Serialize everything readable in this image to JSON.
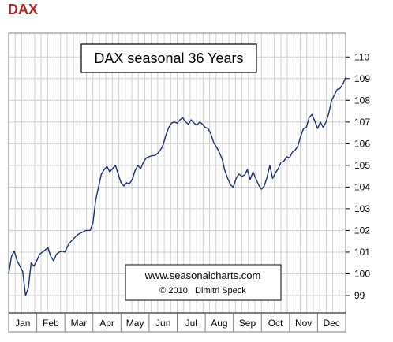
{
  "header": {
    "title": "DAX"
  },
  "chart_data": {
    "type": "line",
    "title": "DAX seasonal 36 Years",
    "xlabel": "",
    "ylabel": "",
    "categories": [
      "Jan",
      "Feb",
      "Mar",
      "Apr",
      "May",
      "Jun",
      "Jul",
      "Aug",
      "Sep",
      "Oct",
      "Nov",
      "Dec"
    ],
    "ylim": [
      98.2,
      111.1
    ],
    "xlim": [
      0,
      12
    ],
    "yticks": [
      99,
      100,
      101,
      102,
      103,
      104,
      105,
      106,
      107,
      108,
      109,
      110
    ],
    "grid": true,
    "annotation": {
      "line1": "www.seasonalcharts.com",
      "line2": "© 2010   Dimitri Speck"
    },
    "series": [
      {
        "x": [
          0.0,
          0.1,
          0.2,
          0.3,
          0.4,
          0.5,
          0.6,
          0.7,
          0.8,
          0.9,
          1.0,
          1.1,
          1.2,
          1.3,
          1.4,
          1.5,
          1.6,
          1.7,
          1.8,
          1.9,
          2.0,
          2.15,
          2.3,
          2.45,
          2.6,
          2.75,
          2.9,
          3.0,
          3.1,
          3.2,
          3.3,
          3.4,
          3.5,
          3.6,
          3.7,
          3.8,
          3.9,
          4.0,
          4.1,
          4.2,
          4.3,
          4.4,
          4.5,
          4.6,
          4.7,
          4.8,
          4.9,
          5.0,
          5.1,
          5.2,
          5.3,
          5.4,
          5.5,
          5.6,
          5.7,
          5.8,
          5.9,
          6.0,
          6.1,
          6.2,
          6.3,
          6.4,
          6.5,
          6.6,
          6.7,
          6.8,
          6.9,
          7.0,
          7.1,
          7.2,
          7.3,
          7.4,
          7.5,
          7.6,
          7.7,
          7.8,
          7.9,
          8.0,
          8.1,
          8.2,
          8.3,
          8.4,
          8.5,
          8.6,
          8.7,
          8.8,
          8.9,
          9.0,
          9.1,
          9.2,
          9.3,
          9.4,
          9.5,
          9.6,
          9.7,
          9.8,
          9.9,
          10.0,
          10.1,
          10.2,
          10.3,
          10.4,
          10.5,
          10.6,
          10.7,
          10.8,
          10.9,
          11.0,
          11.1,
          11.2,
          11.3,
          11.4,
          11.5,
          11.6,
          11.7,
          11.8,
          11.9,
          12.0
        ],
        "values": [
          100.0,
          100.8,
          101.05,
          100.6,
          100.35,
          100.1,
          99.0,
          99.35,
          100.5,
          100.35,
          100.6,
          100.9,
          101.0,
          101.1,
          101.2,
          100.8,
          100.6,
          100.9,
          101.0,
          101.05,
          101.0,
          101.4,
          101.6,
          101.8,
          101.9,
          102.0,
          102.0,
          102.35,
          103.4,
          104.0,
          104.6,
          104.8,
          104.95,
          104.7,
          104.85,
          105.0,
          104.6,
          104.2,
          104.05,
          104.2,
          104.15,
          104.35,
          104.75,
          105.0,
          104.85,
          105.15,
          105.35,
          105.4,
          105.45,
          105.45,
          105.55,
          105.7,
          105.95,
          106.4,
          106.75,
          106.95,
          107.0,
          106.95,
          107.1,
          107.2,
          107.0,
          106.9,
          107.1,
          106.95,
          106.85,
          107.0,
          106.9,
          106.75,
          106.7,
          106.45,
          106.05,
          105.85,
          105.6,
          105.3,
          104.75,
          104.4,
          104.1,
          104.0,
          104.4,
          104.6,
          104.5,
          104.55,
          104.8,
          104.35,
          104.7,
          104.4,
          104.1,
          103.9,
          104.05,
          104.45,
          105.0,
          104.4,
          104.65,
          104.85,
          105.15,
          105.2,
          105.4,
          105.35,
          105.6,
          105.7,
          105.9,
          106.35,
          106.7,
          106.75,
          107.2,
          107.35,
          107.05,
          106.7,
          107.0,
          106.75,
          107.0,
          107.4,
          108.0,
          108.25,
          108.5,
          108.55,
          108.75,
          109.05
        ]
      }
    ]
  }
}
